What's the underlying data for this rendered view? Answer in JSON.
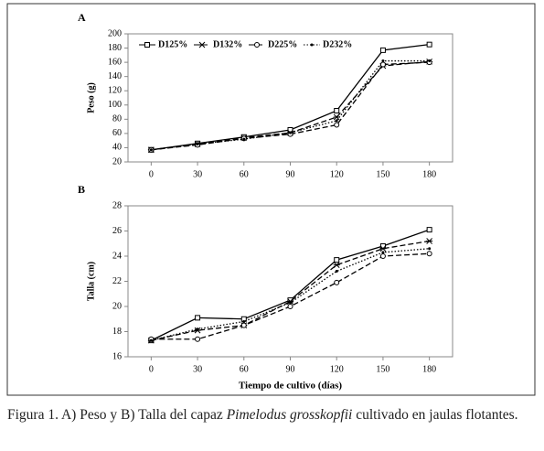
{
  "chart_data": [
    {
      "type": "line",
      "panel": "A",
      "ylabel": "Peso (g)",
      "categories": [
        "0",
        "30",
        "60",
        "90",
        "120",
        "150",
        "180"
      ],
      "ylim": [
        20,
        200
      ],
      "yticks": [
        20,
        40,
        60,
        80,
        100,
        120,
        140,
        160,
        180,
        200
      ],
      "legend": "top",
      "series": [
        {
          "name": "D125%",
          "color": "#000000",
          "style": "solid",
          "marker": "square",
          "values": [
            37,
            46,
            55,
            65,
            92,
            177,
            185
          ]
        },
        {
          "name": "D132%",
          "color": "#000000",
          "style": "dashed",
          "marker": "x",
          "values": [
            37,
            45,
            54,
            61,
            83,
            155,
            161
          ]
        },
        {
          "name": "D225%",
          "color": "#000000",
          "style": "dashed",
          "marker": "circle",
          "values": [
            37,
            44,
            53,
            59,
            72,
            157,
            160
          ]
        },
        {
          "name": "D232%",
          "color": "#000000",
          "style": "dotted",
          "marker": "dot",
          "values": [
            37,
            45,
            52,
            61,
            78,
            162,
            162
          ]
        }
      ]
    },
    {
      "type": "line",
      "panel": "B",
      "ylabel": "Talla (cm)",
      "xlabel": "Tiempo de cultivo (días)",
      "categories": [
        "0",
        "30",
        "60",
        "90",
        "120",
        "150",
        "180"
      ],
      "ylim": [
        16,
        28
      ],
      "yticks": [
        16,
        18,
        20,
        22,
        24,
        26,
        28
      ],
      "series": [
        {
          "color": "#000000",
          "style": "solid",
          "marker": "square",
          "values": [
            17.3,
            19.1,
            19.0,
            20.5,
            23.7,
            24.8,
            26.1
          ]
        },
        {
          "color": "#000000",
          "style": "dashed",
          "marker": "x",
          "values": [
            17.3,
            18.1,
            18.5,
            20.4,
            23.3,
            24.6,
            25.2
          ]
        },
        {
          "color": "#000000",
          "style": "dashed",
          "marker": "circle",
          "values": [
            17.4,
            17.4,
            18.5,
            20.0,
            21.9,
            24.0,
            24.2
          ]
        },
        {
          "color": "#000000",
          "style": "dotted",
          "marker": "dot",
          "values": [
            17.3,
            18.2,
            18.8,
            20.3,
            22.8,
            24.3,
            24.6
          ]
        }
      ]
    }
  ],
  "caption": {
    "before": "Figura 1. A) Peso y B) Talla del capaz ",
    "species": "Pimelodus grosskopfii",
    "after": " cultivado en jaulas flotantes."
  }
}
